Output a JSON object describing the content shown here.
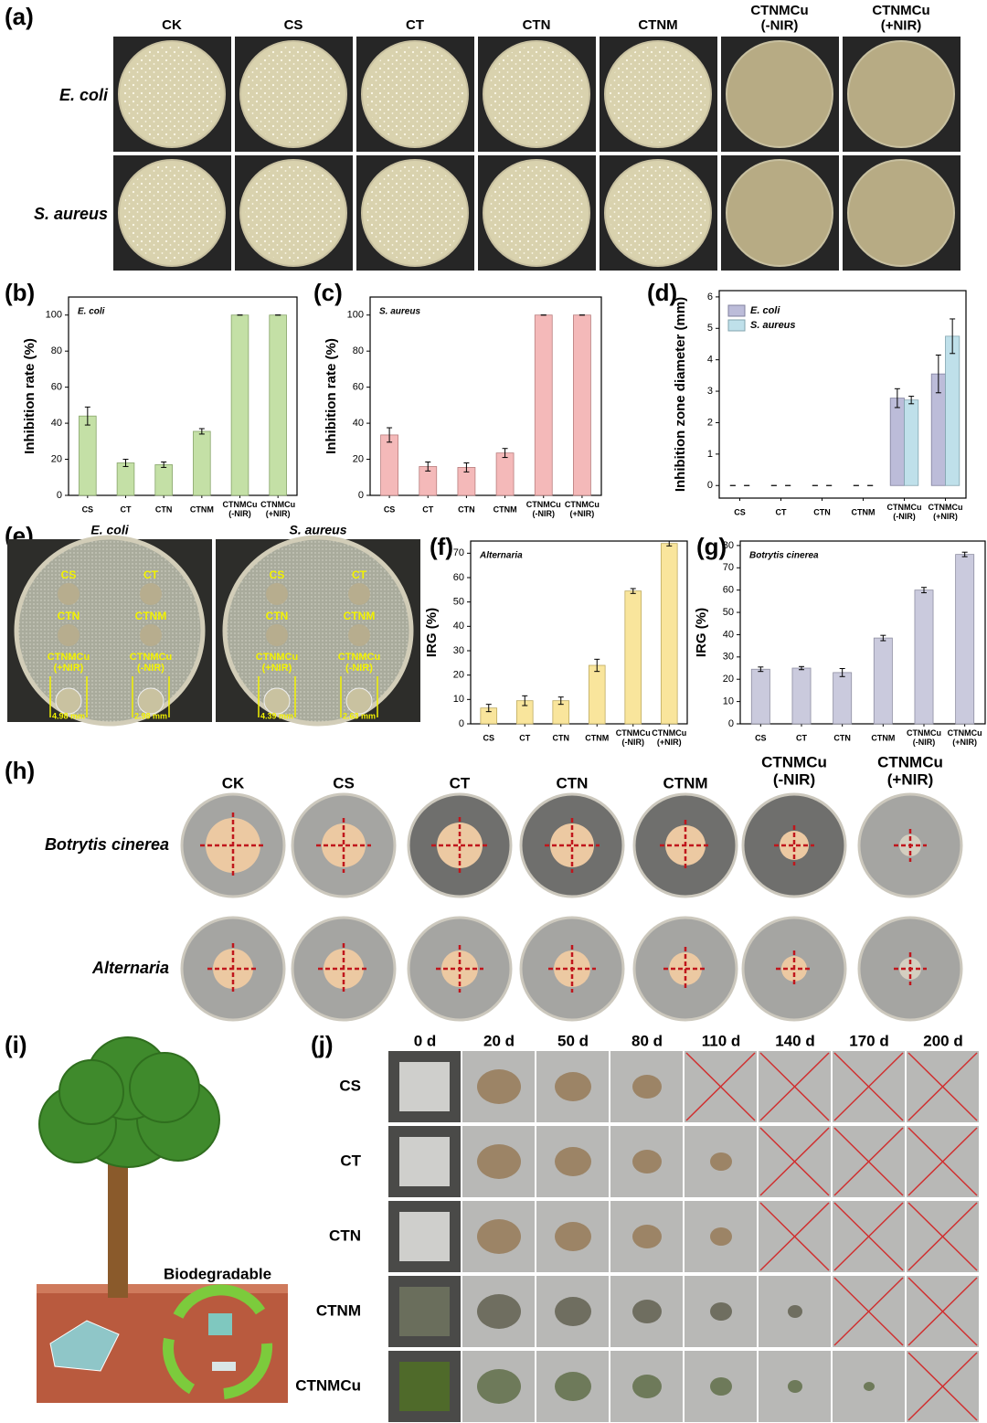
{
  "panel_labels": [
    "(a)",
    "(b)",
    "(c)",
    "(d)",
    "(e)",
    "(f)",
    "(g)",
    "(h)",
    "(i)",
    "(j)"
  ],
  "plates_a": {
    "columns": [
      "CK",
      "CS",
      "CT",
      "CTN",
      "CTNM",
      "CTNMCu\n(-NIR)",
      "CTNMCu\n(+NIR)"
    ],
    "rows": [
      "E. coli",
      "S. aureus"
    ]
  },
  "zones_e": {
    "plates": [
      {
        "title": "E. coli",
        "measurements": [
          "4.98 mm",
          "2.98 mm"
        ]
      },
      {
        "title": "S. aureus",
        "measurements": [
          "4.39 mm",
          "2.63 mm"
        ]
      }
    ],
    "samples": [
      "CS",
      "CT",
      "CTN",
      "CTNM",
      "CTNMCu\n(+NIR)",
      "CTNMCu\n(-NIR)"
    ]
  },
  "fungi_h": {
    "columns": [
      "CK",
      "CS",
      "CT",
      "CTN",
      "CTNM",
      "CTNMCu\n(-NIR)",
      "CTNMCu\n(+NIR)"
    ],
    "rows": [
      "Botrytis cinerea",
      "Alternaria"
    ]
  },
  "illustration_i": {
    "caption": "Biodegradable"
  },
  "degradation_j": {
    "columns": [
      "0 d",
      "20 d",
      "50 d",
      "80 d",
      "110 d",
      "140 d",
      "170 d",
      "200 d"
    ],
    "rows": [
      "CS",
      "CT",
      "CTN",
      "CTNM",
      "CTNMCu"
    ]
  },
  "chart_data": [
    {
      "type": "bar",
      "annotation": "E. coli",
      "ylabel": "Inhibition rate (%)",
      "categories": [
        "CS",
        "CT",
        "CTN",
        "CTNM",
        "CTNMCu\n(-NIR)",
        "CTNMCu\n(+NIR)"
      ],
      "values": [
        44,
        18,
        17,
        35.5,
        100,
        100
      ],
      "errors": [
        5,
        2,
        1.5,
        1.5,
        0,
        0
      ],
      "color": "#c4e0a6",
      "ylim": [
        0,
        110
      ],
      "yticks": [
        0,
        20,
        40,
        60,
        80,
        100
      ]
    },
    {
      "type": "bar",
      "annotation": "S. aureus",
      "ylabel": "Inhibition rate (%)",
      "categories": [
        "CS",
        "CT",
        "CTN",
        "CTNM",
        "CTNMCu\n(-NIR)",
        "CTNMCu\n(+NIR)"
      ],
      "values": [
        33.5,
        16,
        15.5,
        23.5,
        100,
        100
      ],
      "errors": [
        4,
        2.5,
        2.5,
        2.5,
        0,
        0
      ],
      "color": "#f4b9b9",
      "ylim": [
        0,
        110
      ],
      "yticks": [
        0,
        20,
        40,
        60,
        80,
        100
      ]
    },
    {
      "type": "bar",
      "ylabel": "Inhibition zone diameter (mm)",
      "categories": [
        "CS",
        "CT",
        "CTN",
        "CTNM",
        "CTNMCu\n(-NIR)",
        "CTNMCu\n(+NIR)"
      ],
      "series": [
        {
          "name": "E. coli",
          "color": "#bcbcd9",
          "values": [
            0,
            0,
            0,
            0,
            2.78,
            3.55
          ],
          "errors": [
            0,
            0,
            0,
            0,
            0.3,
            0.6
          ]
        },
        {
          "name": "S. aureus",
          "color": "#bfe0ea",
          "values": [
            0,
            0,
            0,
            0,
            2.72,
            4.75
          ],
          "errors": [
            0,
            0,
            0,
            0,
            0.12,
            0.55
          ]
        }
      ],
      "ylim": [
        -0.4,
        6.2
      ],
      "yticks": [
        0,
        1,
        2,
        3,
        4,
        5,
        6
      ]
    },
    {
      "type": "bar",
      "annotation": "Alternaria",
      "ylabel": "IRG (%)",
      "categories": [
        "CS",
        "CT",
        "CTN",
        "CTNM",
        "CTNMCu\n(-NIR)",
        "CTNMCu\n(+NIR)"
      ],
      "values": [
        6.5,
        9.5,
        9.5,
        24,
        54.5,
        74
      ],
      "errors": [
        1.5,
        2,
        1.5,
        2.5,
        1,
        1
      ],
      "color": "#f9e59c",
      "ylim": [
        0,
        75
      ],
      "yticks": [
        0,
        10,
        20,
        30,
        40,
        50,
        60,
        70
      ]
    },
    {
      "type": "bar",
      "annotation": "Botrytis cinerea",
      "ylabel": "IRG (%)",
      "categories": [
        "CS",
        "CT",
        "CTN",
        "CTNM",
        "CTNMCu\n(-NIR)",
        "CTNMCu\n(+NIR)"
      ],
      "values": [
        24.5,
        25,
        23,
        38.5,
        60,
        76
      ],
      "errors": [
        1,
        0.7,
        1.8,
        1.2,
        1.2,
        1
      ],
      "color": "#cacadd",
      "ylim": [
        0,
        82
      ],
      "yticks": [
        0,
        10,
        20,
        30,
        40,
        50,
        60,
        70,
        80
      ]
    }
  ]
}
